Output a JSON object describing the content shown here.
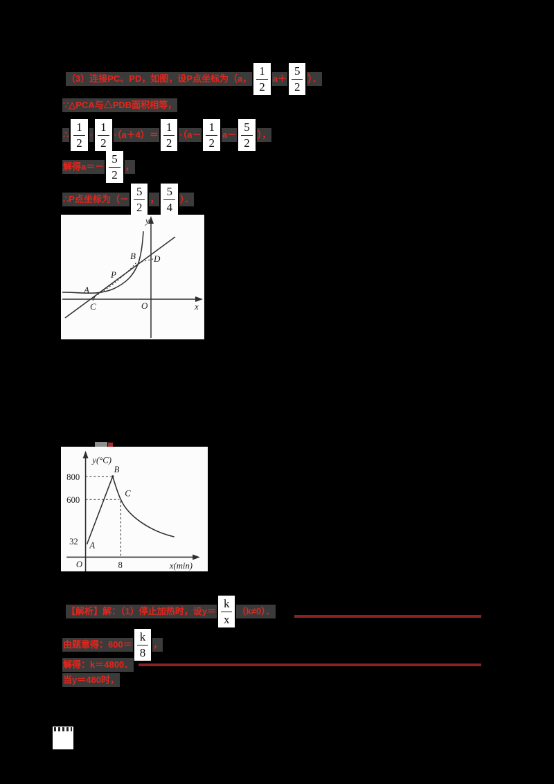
{
  "theme": {
    "bg": "#000000",
    "red": "#e3261d",
    "dark_red": "#8b2221",
    "strip": "#3b3b3b",
    "frac_bg": "#ffffff",
    "frac_fg": "#111111",
    "figure_bg": "#fcfcfc",
    "figure_ink": "#2f2f2f"
  },
  "solution_top": {
    "line1": [
      {
        "text": "（3）连接PC、PD，如图，设P点坐标为（a，"
      },
      {
        "frac": [
          "1",
          "2"
        ]
      },
      {
        "text": "a＋"
      },
      {
        "frac": [
          "5",
          "2"
        ]
      },
      {
        "text": "）．"
      }
    ],
    "line2": [
      {
        "text": "∵△PCA与△PDB面积相等，"
      }
    ],
    "line3": [
      {
        "text": "∴"
      },
      {
        "frac": [
          "1",
          "2"
        ]
      },
      {
        "text": "·"
      },
      {
        "frac": [
          "1",
          "2"
        ]
      },
      {
        "text": "·（a＋4）＝"
      },
      {
        "frac": [
          "1",
          "2"
        ]
      },
      {
        "text": "·（a－"
      },
      {
        "frac": [
          "1",
          "2"
        ]
      },
      {
        "text": "a－"
      },
      {
        "frac": [
          "5",
          "2"
        ]
      },
      {
        "text": "），"
      }
    ],
    "line4": [
      {
        "text": "解得a＝－"
      },
      {
        "frac": [
          "5",
          "2"
        ]
      },
      {
        "text": "，"
      }
    ],
    "line5": [
      {
        "text": "∴P点坐标为（－"
      },
      {
        "frac": [
          "5",
          "2"
        ]
      },
      {
        "text": "，"
      },
      {
        "frac": [
          "5",
          "4"
        ]
      },
      {
        "text": "）．"
      }
    ]
  },
  "figure1": {
    "labels": {
      "y": "y",
      "x": "x",
      "O": "O",
      "A": "A",
      "B": "B",
      "C": "C",
      "D": "D",
      "P": "P"
    }
  },
  "figure2": {
    "labels": {
      "y_axis": "y(°C)",
      "x_axis": "x(min)",
      "O": "O",
      "A": "A",
      "B": "B",
      "C": "C",
      "t800": "800",
      "t600": "600",
      "t32": "32",
      "t8": "8"
    },
    "chart_data": {
      "type": "line",
      "xlabel": "x(min)",
      "ylabel": "y(°C)",
      "y_ticks": [
        32,
        600,
        800
      ],
      "x_ticks": [
        8
      ],
      "points_labeled": [
        {
          "label": "A",
          "x": 0,
          "y": 32
        },
        {
          "label": "B",
          "y": 800
        },
        {
          "label": "C",
          "x": 8,
          "y": 600
        }
      ],
      "segments": [
        {
          "kind": "linear-rise",
          "from": "A (0, 32)",
          "to": "B (peak, 800)"
        },
        {
          "kind": "inverse-proportional-decay",
          "through": "C (8, 600)"
        }
      ]
    }
  },
  "solution_bottom": {
    "line1": [
      {
        "text": "【解析】解：（1）停止加热时，设y＝"
      },
      {
        "frac": [
          "k",
          "x"
        ]
      },
      {
        "text": "（k≠0）．"
      }
    ],
    "line2": [
      {
        "text": "由题意得：600＝"
      },
      {
        "frac": [
          "k",
          "8"
        ]
      },
      {
        "text": "，"
      }
    ],
    "line3": [
      {
        "text": "解得：k＝4800．"
      }
    ],
    "line4": [
      {
        "text": "当y＝480时，"
      }
    ]
  }
}
